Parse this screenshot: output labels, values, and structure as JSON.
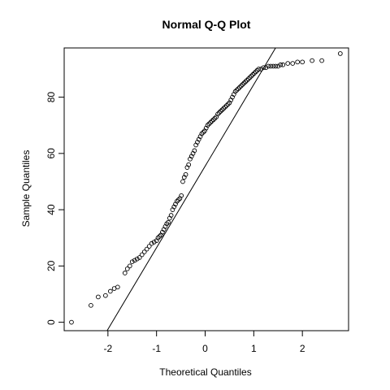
{
  "chart_data": {
    "type": "scatter",
    "title": "Normal Q-Q Plot",
    "xlabel": "Theoretical Quantiles",
    "ylabel": "Sample Quantiles",
    "xlim": [
      -2.9,
      2.95
    ],
    "ylim": [
      -3,
      97.5
    ],
    "xticks": [
      -2,
      -1,
      0,
      1,
      2
    ],
    "yticks": [
      0,
      20,
      40,
      60,
      80
    ],
    "grid": false,
    "points": {
      "x": [
        -2.75,
        -2.35,
        -2.2,
        -2.05,
        -1.95,
        -1.87,
        -1.8,
        -1.65,
        -1.6,
        -1.55,
        -1.5,
        -1.45,
        -1.4,
        -1.35,
        -1.3,
        -1.25,
        -1.2,
        -1.15,
        -1.1,
        -1.05,
        -1.0,
        -0.97,
        -0.94,
        -0.91,
        -0.88,
        -0.85,
        -0.82,
        -0.79,
        -0.76,
        -0.73,
        -0.7,
        -0.67,
        -0.64,
        -0.61,
        -0.58,
        -0.55,
        -0.52,
        -0.49,
        -0.46,
        -0.43,
        -0.4,
        -0.37,
        -0.34,
        -0.31,
        -0.28,
        -0.25,
        -0.22,
        -0.19,
        -0.16,
        -0.13,
        -0.1,
        -0.07,
        -0.04,
        -0.01,
        0.02,
        0.05,
        0.08,
        0.11,
        0.14,
        0.17,
        0.2,
        0.23,
        0.26,
        0.29,
        0.32,
        0.35,
        0.38,
        0.41,
        0.44,
        0.47,
        0.5,
        0.53,
        0.56,
        0.59,
        0.62,
        0.65,
        0.68,
        0.71,
        0.74,
        0.77,
        0.8,
        0.83,
        0.86,
        0.89,
        0.92,
        0.95,
        0.98,
        1.01,
        1.04,
        1.07,
        1.1,
        1.15,
        1.2,
        1.25,
        1.3,
        1.35,
        1.4,
        1.45,
        1.5,
        1.55,
        1.6,
        1.7,
        1.8,
        1.9,
        2.0,
        2.2,
        2.4,
        2.78
      ],
      "y": [
        0,
        6,
        9,
        9.5,
        11,
        12,
        12.5,
        17.5,
        19,
        20,
        21.5,
        22,
        22.5,
        23,
        24,
        25,
        26,
        27,
        28,
        28.5,
        29,
        30,
        30.5,
        31,
        32,
        33,
        34,
        35,
        35.5,
        37,
        38,
        40,
        41,
        42,
        43,
        43.5,
        44,
        45,
        50,
        51.5,
        52.5,
        55,
        56,
        58,
        59,
        60,
        61,
        63,
        64,
        65,
        66,
        67,
        67.5,
        68,
        69,
        70,
        70.5,
        71,
        71.5,
        72,
        72.5,
        73,
        74,
        74.5,
        75,
        75.5,
        76,
        76.5,
        77,
        77.5,
        78,
        79,
        80,
        81,
        82,
        82.5,
        83,
        83.5,
        84,
        84.5,
        85,
        85.5,
        86,
        86.5,
        87,
        87.5,
        88,
        88.5,
        89,
        89.5,
        90,
        90,
        90.5,
        90.5,
        91,
        91,
        91,
        91,
        91,
        91.5,
        91.5,
        92,
        92,
        92.5,
        92.5,
        93,
        93,
        95.5
      ]
    },
    "reference_line": {
      "intercept": 55.5,
      "slope": 29
    }
  }
}
